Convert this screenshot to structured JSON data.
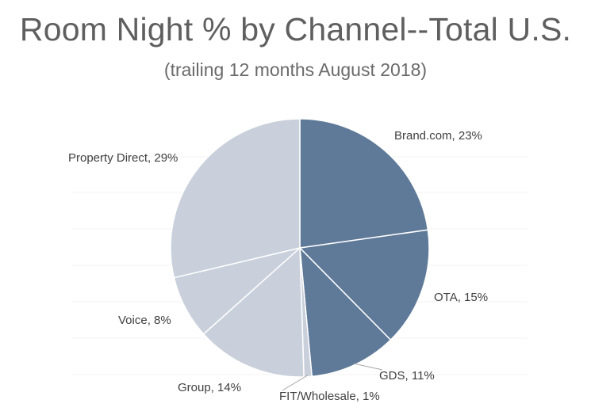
{
  "title": "Room Night % by Channel--Total U.S.",
  "subtitle": "(trailing 12 months August 2018)",
  "chart_data": {
    "type": "pie",
    "title": "Room Night % by Channel--Total U.S.",
    "subtitle": "(trailing 12 months August 2018)",
    "start_angle_deg": 0,
    "direction": "clockwise",
    "slices": [
      {
        "label": "Brand.com",
        "value": 23,
        "display": "Brand.com, 23%",
        "color": "#5f7a99"
      },
      {
        "label": "OTA",
        "value": 15,
        "display": "OTA, 15%",
        "color": "#5f7a99"
      },
      {
        "label": "GDS",
        "value": 11,
        "display": "GDS, 11%",
        "color": "#5f7a99"
      },
      {
        "label": "FIT/Wholesale",
        "value": 1,
        "display": "FIT/Wholesale, 1%",
        "color": "#c9d0db"
      },
      {
        "label": "Group",
        "value": 14,
        "display": "Group, 14%",
        "color": "#c9d0db"
      },
      {
        "label": "Voice",
        "value": 8,
        "display": "Voice, 8%",
        "color": "#c9d0db"
      },
      {
        "label": "Property Direct",
        "value": 29,
        "display": "Property Direct, 29%",
        "color": "#c9d0db"
      }
    ],
    "legend": "none"
  },
  "colors": {
    "dark_slice": "#5f7a99",
    "light_slice": "#c9d0db",
    "title_text": "#5f5f5f"
  }
}
